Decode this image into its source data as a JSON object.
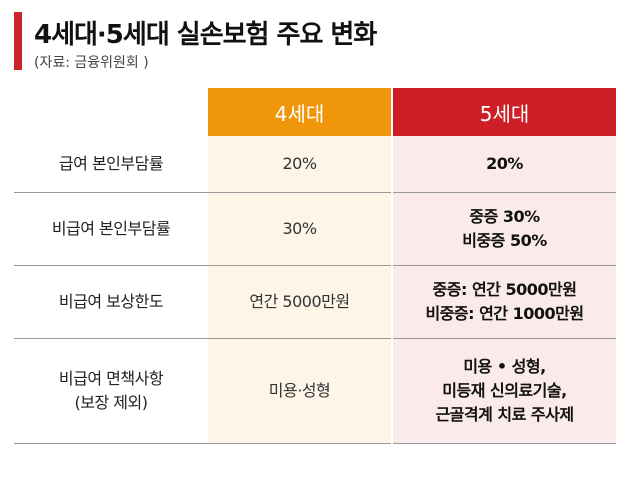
{
  "header": {
    "title": "4세대·5세대 실손보험 주요 변화",
    "source": "(자료: 금융위원회 )"
  },
  "colors": {
    "accent": "#c8252c",
    "gen4": "#f0960a",
    "gen5": "#cd1f26",
    "gen4_bg": "#fdf5e8",
    "gen5_bg": "#fbeaea"
  },
  "table": {
    "columns": [
      "",
      "4세대",
      "5세대"
    ],
    "rows": [
      {
        "label": [
          "급여 본인부담률"
        ],
        "gen4": [
          "20%"
        ],
        "gen5": [
          "20%"
        ]
      },
      {
        "label": [
          "비급여 본인부담률"
        ],
        "gen4": [
          "30%"
        ],
        "gen5": [
          "중증 30%",
          "비중증 50%"
        ]
      },
      {
        "label": [
          "비급여 보상한도"
        ],
        "gen4": [
          "연간 5000만원"
        ],
        "gen5": [
          "중증: 연간 5000만원",
          "비중증: 연간 1000만원"
        ]
      },
      {
        "label": [
          "비급여 면책사항",
          "(보장 제외)"
        ],
        "gen4": [
          "미용·성형"
        ],
        "gen5": [
          "미용 • 성형,",
          "미등재 신의료기술,",
          "근골격계 치료 주사제"
        ]
      }
    ]
  }
}
